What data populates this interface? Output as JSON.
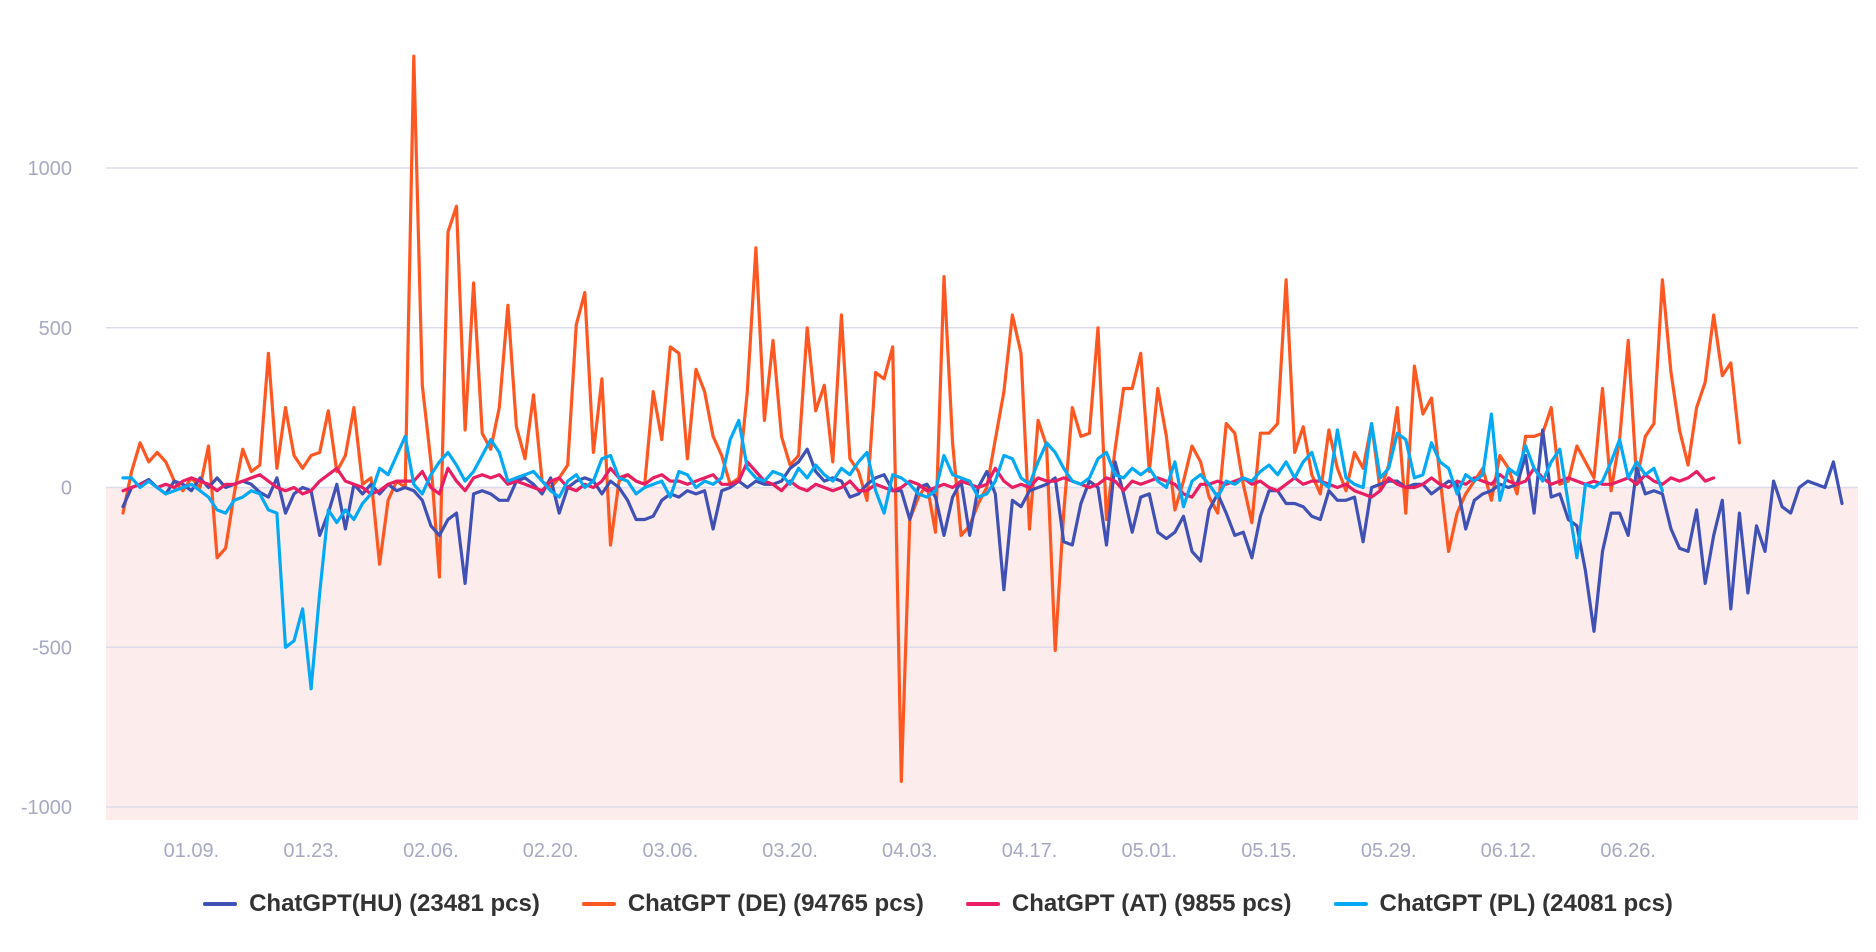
{
  "chart_data": {
    "type": "line",
    "title": "",
    "xlabel": "",
    "ylabel": "",
    "ylim": [
      -1000,
      1000
    ],
    "y_ticks": [
      "1000",
      "500",
      "0",
      "-500",
      "-1000"
    ],
    "y_tick_values": [
      1000,
      500,
      0,
      -500,
      -1000
    ],
    "x_ticks": [
      "01.09.",
      "01.23.",
      "02.06.",
      "02.20.",
      "03.06.",
      "03.20.",
      "04.03.",
      "04.17.",
      "05.01.",
      "05.15.",
      "05.29.",
      "06.12.",
      "06.26."
    ],
    "x_tick_positions": [
      8,
      22,
      36,
      50,
      64,
      78,
      92,
      106,
      120,
      134,
      148,
      162,
      176
    ],
    "negative_region_color": "#fdecec",
    "grid": true,
    "legend_position": "bottom",
    "series": [
      {
        "name": "ChatGPT(HU) (23481 pcs)",
        "color": "#3f51b5",
        "values": [
          -60,
          0,
          10,
          25,
          0,
          -20,
          20,
          10,
          -10,
          30,
          0,
          30,
          0,
          10,
          20,
          10,
          -15,
          -30,
          30,
          -80,
          -20,
          0,
          -10,
          -150,
          -80,
          10,
          -130,
          10,
          -20,
          10,
          -20,
          10,
          -10,
          0,
          -10,
          -40,
          -120,
          -150,
          -100,
          -80,
          -300,
          -20,
          -10,
          -20,
          -40,
          -40,
          20,
          30,
          10,
          -20,
          30,
          -80,
          0,
          20,
          30,
          20,
          -20,
          20,
          0,
          -40,
          -100,
          -100,
          -90,
          -40,
          -20,
          -30,
          -10,
          -20,
          -10,
          -130,
          -10,
          0,
          20,
          0,
          20,
          10,
          10,
          20,
          60,
          80,
          120,
          50,
          20,
          30,
          20,
          -30,
          -20,
          10,
          30,
          40,
          -10,
          -10,
          -100,
          0,
          10,
          -30,
          -150,
          -30,
          20,
          -150,
          0,
          50,
          -20,
          -320,
          -40,
          -60,
          -10,
          0,
          10,
          30,
          -170,
          -180,
          -50,
          20,
          0,
          -180,
          80,
          -20,
          -140,
          -30,
          -20,
          -140,
          -160,
          -140,
          -90,
          -200,
          -230,
          -70,
          -20,
          -80,
          -150,
          -140,
          -220,
          -90,
          -10,
          -10,
          -50,
          -50,
          -60,
          -90,
          -100,
          -10,
          -40,
          -40,
          -30,
          -170,
          0,
          10,
          20,
          20,
          0,
          10,
          10,
          -20,
          0,
          20,
          10,
          -130,
          -40,
          -20,
          -10,
          10,
          0,
          10,
          100,
          -80,
          180,
          -30,
          -20,
          -100,
          -120,
          -260,
          -450,
          -200,
          -80,
          -80,
          -150,
          60,
          -20,
          -10,
          -20,
          -130,
          -190,
          -200,
          -70,
          -300,
          -150,
          -40,
          -380,
          -80,
          -330,
          -120,
          -200,
          20,
          -60,
          -80,
          0,
          20,
          10,
          0,
          80,
          -50
        ]
      },
      {
        "name": "ChatGPT (DE) (94765 pcs)",
        "color": "#ff5722",
        "values": [
          -80,
          50,
          140,
          80,
          110,
          80,
          20,
          -10,
          30,
          0,
          130,
          -220,
          -190,
          -20,
          120,
          50,
          70,
          420,
          60,
          250,
          100,
          60,
          100,
          110,
          240,
          50,
          100,
          250,
          10,
          30,
          -240,
          -40,
          20,
          0,
          1350,
          320,
          80,
          -280,
          800,
          880,
          180,
          640,
          170,
          120,
          250,
          570,
          190,
          90,
          290,
          20,
          0,
          30,
          70,
          510,
          610,
          110,
          340,
          -180,
          20,
          40,
          20,
          10,
          300,
          150,
          440,
          420,
          90,
          370,
          300,
          160,
          100,
          10,
          30,
          300,
          750,
          210,
          460,
          160,
          70,
          100,
          500,
          240,
          320,
          80,
          540,
          90,
          50,
          -40,
          360,
          340,
          440,
          -920,
          -100,
          -30,
          10,
          -140,
          660,
          140,
          -150,
          -120,
          -50,
          0,
          150,
          300,
          540,
          420,
          -130,
          210,
          130,
          -510,
          -80,
          250,
          160,
          170,
          500,
          -100,
          120,
          310,
          310,
          420,
          50,
          310,
          160,
          -70,
          20,
          130,
          80,
          -30,
          -80,
          200,
          170,
          10,
          -110,
          170,
          170,
          200,
          650,
          110,
          190,
          40,
          -20,
          180,
          60,
          -10,
          110,
          60,
          200,
          -10,
          70,
          250,
          -80,
          380,
          230,
          280,
          30,
          -200,
          -80,
          -20,
          20,
          60,
          -40,
          100,
          60,
          -20,
          160,
          160,
          170,
          250,
          10,
          20,
          130,
          80,
          30,
          310,
          -10,
          150,
          460,
          20,
          160,
          200,
          650,
          360,
          180,
          70,
          250,
          330,
          540,
          350,
          390,
          140
        ]
      },
      {
        "name": "ChatGPT (AT) (9855 pcs)",
        "color": "#e91e63",
        "values": [
          -10,
          0,
          10,
          20,
          0,
          10,
          0,
          20,
          30,
          20,
          10,
          -10,
          10,
          10,
          20,
          30,
          40,
          20,
          0,
          -10,
          0,
          -20,
          -10,
          20,
          40,
          60,
          20,
          10,
          0,
          -20,
          -10,
          10,
          20,
          20,
          20,
          50,
          0,
          -20,
          60,
          20,
          -10,
          30,
          40,
          30,
          40,
          10,
          20,
          10,
          0,
          -10,
          20,
          30,
          0,
          -10,
          10,
          0,
          20,
          60,
          30,
          40,
          20,
          10,
          30,
          40,
          20,
          20,
          10,
          20,
          30,
          40,
          10,
          10,
          20,
          80,
          50,
          20,
          10,
          -10,
          20,
          0,
          -10,
          10,
          0,
          -10,
          0,
          20,
          -10,
          -10,
          10,
          0,
          -10,
          0,
          20,
          10,
          -10,
          0,
          10,
          0,
          20,
          10,
          0,
          10,
          60,
          20,
          0,
          10,
          0,
          30,
          20,
          20,
          30,
          20,
          10,
          0,
          10,
          30,
          20,
          -10,
          20,
          10,
          20,
          30,
          20,
          10,
          -20,
          -30,
          10,
          10,
          20,
          10,
          20,
          30,
          10,
          20,
          0,
          -10,
          10,
          30,
          10,
          20,
          20,
          10,
          0,
          10,
          -10,
          -20,
          -30,
          -10,
          30,
          10,
          0,
          0,
          10,
          30,
          10,
          0,
          20,
          10,
          30,
          20,
          10,
          40,
          20,
          10,
          20,
          60,
          30,
          10,
          20,
          30,
          20,
          10,
          20,
          10,
          10,
          20,
          30,
          10,
          40,
          20,
          10,
          30,
          20,
          30,
          50,
          20,
          30
        ]
      },
      {
        "name": "ChatGPT (PL) (24081 pcs)",
        "color": "#03a9f4",
        "values": [
          30,
          30,
          0,
          20,
          0,
          -20,
          -10,
          0,
          10,
          -10,
          -30,
          -70,
          -80,
          -40,
          -30,
          -10,
          -20,
          -70,
          -80,
          -500,
          -480,
          -380,
          -630,
          -330,
          -70,
          -110,
          -70,
          -100,
          -50,
          -20,
          60,
          40,
          100,
          160,
          10,
          -20,
          40,
          80,
          110,
          70,
          20,
          50,
          100,
          150,
          110,
          20,
          30,
          40,
          50,
          20,
          -10,
          -30,
          20,
          40,
          0,
          20,
          90,
          100,
          30,
          20,
          -20,
          0,
          10,
          20,
          -30,
          50,
          40,
          0,
          20,
          10,
          30,
          150,
          210,
          60,
          30,
          20,
          50,
          40,
          10,
          60,
          30,
          70,
          40,
          20,
          60,
          40,
          80,
          110,
          -10,
          -80,
          40,
          30,
          10,
          -20,
          -30,
          -10,
          100,
          40,
          30,
          20,
          -30,
          -20,
          20,
          100,
          90,
          30,
          10,
          80,
          140,
          110,
          60,
          20,
          10,
          30,
          90,
          110,
          40,
          30,
          60,
          40,
          60,
          20,
          0,
          80,
          -60,
          20,
          40,
          10,
          -30,
          20,
          10,
          30,
          20,
          50,
          70,
          40,
          80,
          30,
          80,
          110,
          20,
          0,
          180,
          30,
          10,
          0,
          200,
          30,
          60,
          170,
          150,
          30,
          40,
          140,
          80,
          60,
          -20,
          40,
          20,
          40,
          230,
          -40,
          60,
          40,
          130,
          60,
          20,
          80,
          120,
          -50,
          -220,
          10,
          0,
          20,
          80,
          150,
          30,
          80,
          40,
          60,
          -10
        ]
      }
    ]
  }
}
